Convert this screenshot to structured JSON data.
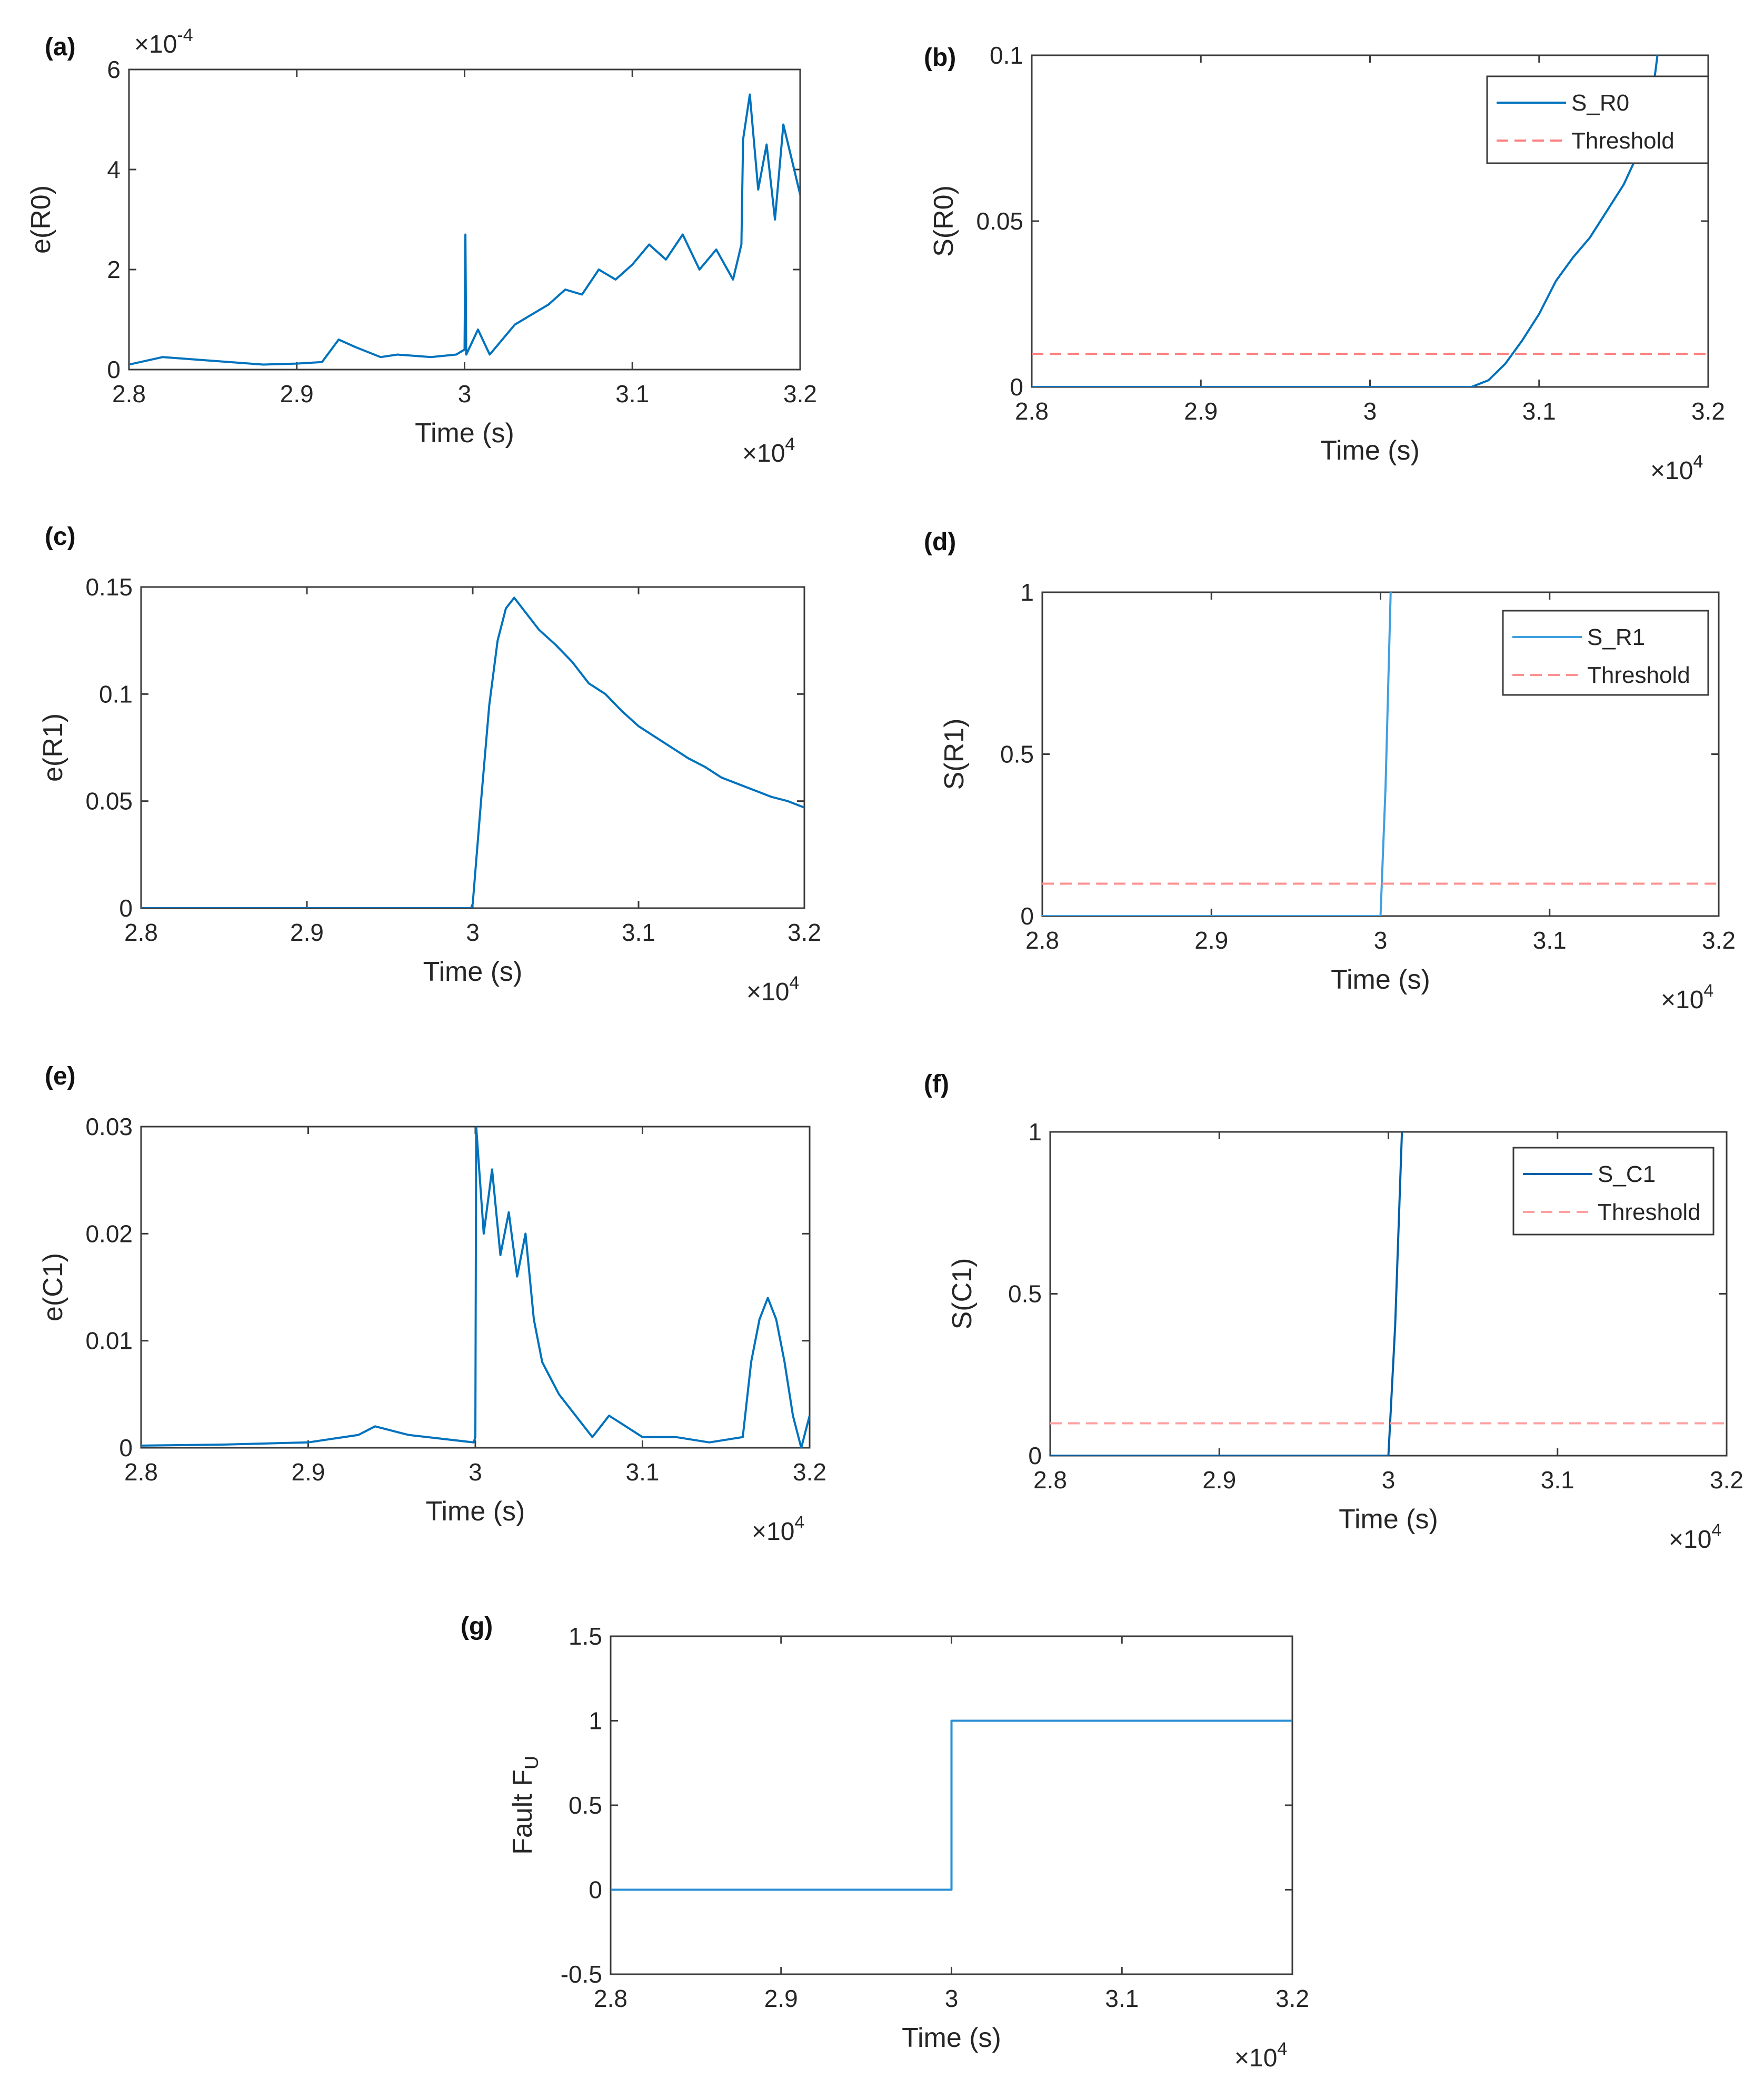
{
  "figure": {
    "multiplier_base": "×10",
    "multiplier_exp": "4"
  },
  "chart_data": [
    {
      "panel": "(a)",
      "type": "line",
      "ylabel": "e(R0)",
      "xlabel": "Time (s)",
      "xlim": [
        28000,
        32000
      ],
      "ylim": [
        0,
        6
      ],
      "y_scale_label": "×10",
      "y_scale_exp": "-4",
      "xticks": [
        28000,
        29000,
        30000,
        31000,
        32000
      ],
      "xtick_labels": [
        "2.8",
        "2.9",
        "3",
        "3.1",
        "3.2"
      ],
      "yticks": [
        0,
        2,
        4,
        6
      ],
      "ytick_labels": [
        "0",
        "2",
        "4",
        "6"
      ],
      "series": [
        {
          "name": "e(R0)",
          "color": "#0072bd",
          "x": [
            28000,
            28200,
            28400,
            28600,
            28800,
            29000,
            29150,
            29250,
            29350,
            29500,
            29600,
            29800,
            29950,
            30000,
            30005,
            30010,
            30080,
            30150,
            30300,
            30400,
            30500,
            30600,
            30700,
            30800,
            30900,
            31000,
            31100,
            31200,
            31300,
            31400,
            31500,
            31600,
            31650,
            31660,
            31700,
            31750,
            31800,
            31850,
            31900,
            31950,
            32000
          ],
          "y": [
            0.1,
            0.25,
            0.2,
            0.15,
            0.1,
            0.12,
            0.15,
            0.6,
            0.45,
            0.25,
            0.3,
            0.25,
            0.3,
            0.4,
            2.7,
            0.3,
            0.8,
            0.3,
            0.9,
            1.1,
            1.3,
            1.6,
            1.5,
            2.0,
            1.8,
            2.1,
            2.5,
            2.2,
            2.7,
            2.0,
            2.4,
            1.8,
            2.5,
            4.6,
            5.5,
            3.6,
            4.5,
            3.0,
            4.9,
            4.2,
            3.5
          ]
        }
      ]
    },
    {
      "panel": "(b)",
      "type": "line",
      "ylabel": "S(R0)",
      "xlabel": "Time (s)",
      "xlim": [
        28000,
        32000
      ],
      "ylim": [
        0,
        0.1
      ],
      "xticks": [
        28000,
        29000,
        30000,
        31000,
        32000
      ],
      "xtick_labels": [
        "2.8",
        "2.9",
        "3",
        "3.1",
        "3.2"
      ],
      "yticks": [
        0,
        0.05,
        0.1
      ],
      "ytick_labels": [
        "0",
        "0.05",
        "0.1"
      ],
      "legend": "top-right",
      "series": [
        {
          "name": "S_R0",
          "color": "#0072bd",
          "x": [
            28000,
            29000,
            30000,
            30600,
            30700,
            30800,
            30900,
            31000,
            31100,
            31200,
            31300,
            31400,
            31500,
            31600,
            31650,
            31700
          ],
          "y": [
            0,
            0,
            0,
            0,
            0.002,
            0.007,
            0.014,
            0.022,
            0.032,
            0.039,
            0.045,
            0.053,
            0.061,
            0.072,
            0.08,
            0.1
          ]
        },
        {
          "name": "Threshold",
          "color": "#ff8080",
          "dashed": true,
          "x": [
            28000,
            32000
          ],
          "y": [
            0.01,
            0.01
          ]
        }
      ]
    },
    {
      "panel": "(c)",
      "type": "line",
      "ylabel": "e(R1)",
      "xlabel": "Time (s)",
      "xlim": [
        28000,
        32000
      ],
      "ylim": [
        0,
        0.15
      ],
      "xticks": [
        28000,
        29000,
        30000,
        31000,
        32000
      ],
      "xtick_labels": [
        "2.8",
        "2.9",
        "3",
        "3.1",
        "3.2"
      ],
      "yticks": [
        0,
        0.05,
        0.1,
        0.15
      ],
      "ytick_labels": [
        "0",
        "0.05",
        "0.1",
        "0.15"
      ],
      "series": [
        {
          "name": "e(R1)",
          "color": "#0072bd",
          "x": [
            28000,
            29000,
            29990,
            30000,
            30050,
            30100,
            30150,
            30200,
            30250,
            30300,
            30400,
            30500,
            30600,
            30700,
            30800,
            30900,
            31000,
            31100,
            31200,
            31300,
            31400,
            31500,
            31600,
            31700,
            31800,
            31900,
            32000
          ],
          "y": [
            0,
            0,
            0,
            0.002,
            0.05,
            0.095,
            0.125,
            0.14,
            0.145,
            0.14,
            0.13,
            0.123,
            0.115,
            0.105,
            0.1,
            0.092,
            0.085,
            0.08,
            0.075,
            0.07,
            0.066,
            0.061,
            0.058,
            0.055,
            0.052,
            0.05,
            0.047
          ]
        }
      ]
    },
    {
      "panel": "(d)",
      "type": "line",
      "ylabel": "S(R1)",
      "xlabel": "Time (s)",
      "xlim": [
        28000,
        32000
      ],
      "ylim": [
        0,
        1
      ],
      "xticks": [
        28000,
        29000,
        30000,
        31000,
        32000
      ],
      "xtick_labels": [
        "2.8",
        "2.9",
        "3",
        "3.1",
        "3.2"
      ],
      "yticks": [
        0,
        0.5,
        1
      ],
      "ytick_labels": [
        "0",
        "0.5",
        "1"
      ],
      "legend": "top-right",
      "series": [
        {
          "name": "S_R1",
          "color": "#3fa0e0",
          "x": [
            28000,
            30000,
            30030,
            30060
          ],
          "y": [
            0,
            0,
            0.4,
            1
          ]
        },
        {
          "name": "Threshold",
          "color": "#ff9090",
          "dashed": true,
          "x": [
            28000,
            32000
          ],
          "y": [
            0.1,
            0.1
          ]
        }
      ]
    },
    {
      "panel": "(e)",
      "type": "line",
      "ylabel": "e(C1)",
      "xlabel": "Time (s)",
      "xlim": [
        28000,
        32000
      ],
      "ylim": [
        0,
        0.03
      ],
      "xticks": [
        28000,
        29000,
        30000,
        31000,
        32000
      ],
      "xtick_labels": [
        "2.8",
        "2.9",
        "3",
        "3.1",
        "3.2"
      ],
      "yticks": [
        0,
        0.01,
        0.02,
        0.03
      ],
      "ytick_labels": [
        "0",
        "0.01",
        "0.02",
        "0.03"
      ],
      "series": [
        {
          "name": "e(C1)",
          "color": "#0072bd",
          "x": [
            28000,
            28500,
            29000,
            29300,
            29400,
            29600,
            29990,
            30000,
            30005,
            30050,
            30100,
            30150,
            30200,
            30250,
            30300,
            30350,
            30400,
            30500,
            30600,
            30700,
            30800,
            30900,
            31000,
            31200,
            31400,
            31600,
            31650,
            31700,
            31750,
            31800,
            31850,
            31900,
            31950,
            32000
          ],
          "y": [
            0.0002,
            0.0003,
            0.0005,
            0.0012,
            0.002,
            0.0012,
            0.0005,
            0.001,
            0.03,
            0.02,
            0.026,
            0.018,
            0.022,
            0.016,
            0.02,
            0.012,
            0.008,
            0.005,
            0.003,
            0.001,
            0.003,
            0.002,
            0.001,
            0.001,
            0.0005,
            0.001,
            0.008,
            0.012,
            0.014,
            0.012,
            0.008,
            0.003,
            0.0,
            0.003
          ]
        }
      ]
    },
    {
      "panel": "(f)",
      "type": "line",
      "ylabel": "S(C1)",
      "xlabel": "Time (s)",
      "xlim": [
        28000,
        32000
      ],
      "ylim": [
        0,
        1
      ],
      "xticks": [
        28000,
        29000,
        30000,
        31000,
        32000
      ],
      "xtick_labels": [
        "2.8",
        "2.9",
        "3",
        "3.1",
        "3.2"
      ],
      "yticks": [
        0,
        0.5,
        1
      ],
      "ytick_labels": [
        "0",
        "0.5",
        "1"
      ],
      "legend": "top-right",
      "series": [
        {
          "name": "S_C1",
          "color": "#0060a8",
          "x": [
            28000,
            30000,
            30040,
            30080
          ],
          "y": [
            0,
            0,
            0.4,
            1
          ]
        },
        {
          "name": "Threshold",
          "color": "#ffa0a0",
          "dashed": true,
          "x": [
            28000,
            32000
          ],
          "y": [
            0.1,
            0.1
          ]
        }
      ]
    },
    {
      "panel": "(g)",
      "type": "line",
      "ylabel": "Fault F",
      "ylabel_sub": "U",
      "xlabel": "Time (s)",
      "xlim": [
        28000,
        32000
      ],
      "ylim": [
        -0.5,
        1.5
      ],
      "xticks": [
        28000,
        29000,
        30000,
        31000,
        32000
      ],
      "xtick_labels": [
        "2.8",
        "2.9",
        "3",
        "3.1",
        "3.2"
      ],
      "yticks": [
        -0.5,
        0,
        0.5,
        1,
        1.5
      ],
      "ytick_labels": [
        "-0.5",
        "0",
        "0.5",
        "1",
        "1.5"
      ],
      "series": [
        {
          "name": "Fault",
          "color": "#2a8fd4",
          "x": [
            28000,
            30000,
            30000,
            32000
          ],
          "y": [
            0,
            0,
            1,
            1
          ]
        }
      ]
    }
  ]
}
